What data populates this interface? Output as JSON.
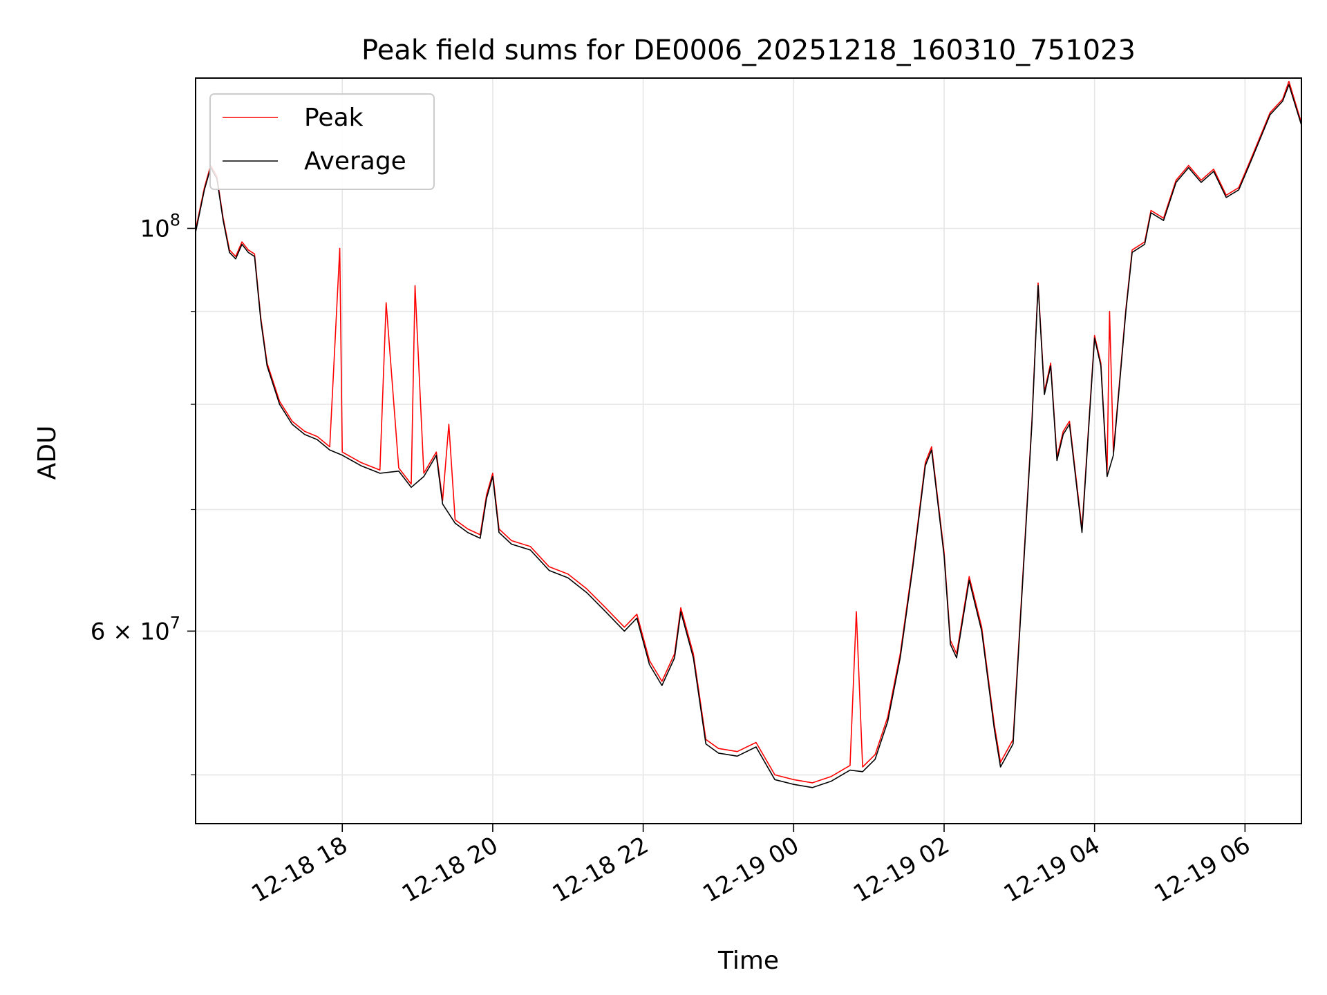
{
  "chart_data": {
    "type": "line",
    "title": "Peak field sums for DE0006_20251218_160310_751023",
    "xlabel": "Time",
    "ylabel": "ADU",
    "yscale": "log",
    "xlim": [
      "2025-12-18 16:03",
      "2025-12-19 06:45"
    ],
    "ylim": [
      47000000,
      121000000
    ],
    "grid": true,
    "legend_position": "top-left",
    "x_ticks": [
      {
        "t": "2025-12-18 18:00",
        "label": "12-18 18"
      },
      {
        "t": "2025-12-18 20:00",
        "label": "12-18 20"
      },
      {
        "t": "2025-12-18 22:00",
        "label": "12-18 22"
      },
      {
        "t": "2025-12-19 00:00",
        "label": "12-19 00"
      },
      {
        "t": "2025-12-19 02:00",
        "label": "12-19 02"
      },
      {
        "t": "2025-12-19 04:00",
        "label": "12-19 04"
      },
      {
        "t": "2025-12-19 06:00",
        "label": "12-19 06"
      }
    ],
    "y_major_ticks": [
      {
        "value": 100000000,
        "base": "10",
        "exp": "8"
      },
      {
        "value": 60000000,
        "base": "6 × 10",
        "exp": "7"
      }
    ],
    "y_minor_ticks": [
      50000000,
      70000000,
      80000000,
      90000000
    ],
    "series": [
      {
        "name": "Average",
        "color": "#000000",
        "points": [
          [
            "2025-12-18 16:03",
            99500000
          ],
          [
            "2025-12-18 16:10",
            105000000
          ],
          [
            "2025-12-18 16:15",
            108000000
          ],
          [
            "2025-12-18 16:20",
            106500000
          ],
          [
            "2025-12-18 16:25",
            101000000
          ],
          [
            "2025-12-18 16:30",
            97000000
          ],
          [
            "2025-12-18 16:35",
            96200000
          ],
          [
            "2025-12-18 16:40",
            98000000
          ],
          [
            "2025-12-18 16:45",
            97000000
          ],
          [
            "2025-12-18 16:50",
            96500000
          ],
          [
            "2025-12-18 16:55",
            89000000
          ],
          [
            "2025-12-18 17:00",
            84000000
          ],
          [
            "2025-12-18 17:10",
            80000000
          ],
          [
            "2025-12-18 17:20",
            78000000
          ],
          [
            "2025-12-18 17:30",
            77000000
          ],
          [
            "2025-12-18 17:40",
            76500000
          ],
          [
            "2025-12-18 17:50",
            75500000
          ],
          [
            "2025-12-18 18:00",
            75000000
          ],
          [
            "2025-12-18 18:15",
            74000000
          ],
          [
            "2025-12-18 18:30",
            73300000
          ],
          [
            "2025-12-18 18:45",
            73500000
          ],
          [
            "2025-12-18 18:55",
            72000000
          ],
          [
            "2025-12-18 19:05",
            73000000
          ],
          [
            "2025-12-18 19:15",
            75000000
          ],
          [
            "2025-12-18 19:20",
            70500000
          ],
          [
            "2025-12-18 19:30",
            68800000
          ],
          [
            "2025-12-18 19:40",
            68000000
          ],
          [
            "2025-12-18 19:50",
            67500000
          ],
          [
            "2025-12-18 19:55",
            71000000
          ],
          [
            "2025-12-18 20:00",
            73000000
          ],
          [
            "2025-12-18 20:05",
            68000000
          ],
          [
            "2025-12-18 20:15",
            67000000
          ],
          [
            "2025-12-18 20:30",
            66500000
          ],
          [
            "2025-12-18 20:45",
            64800000
          ],
          [
            "2025-12-18 21:00",
            64200000
          ],
          [
            "2025-12-18 21:15",
            63000000
          ],
          [
            "2025-12-18 21:30",
            61500000
          ],
          [
            "2025-12-18 21:45",
            60000000
          ],
          [
            "2025-12-18 21:55",
            61000000
          ],
          [
            "2025-12-18 22:05",
            57500000
          ],
          [
            "2025-12-18 22:15",
            56000000
          ],
          [
            "2025-12-18 22:25",
            58000000
          ],
          [
            "2025-12-18 22:30",
            61500000
          ],
          [
            "2025-12-18 22:40",
            58000000
          ],
          [
            "2025-12-18 22:50",
            52000000
          ],
          [
            "2025-12-18 23:00",
            51400000
          ],
          [
            "2025-12-18 23:15",
            51200000
          ],
          [
            "2025-12-18 23:30",
            51800000
          ],
          [
            "2025-12-18 23:45",
            49700000
          ],
          [
            "2025-12-19 00:00",
            49400000
          ],
          [
            "2025-12-19 00:15",
            49200000
          ],
          [
            "2025-12-19 00:30",
            49600000
          ],
          [
            "2025-12-19 00:45",
            50300000
          ],
          [
            "2025-12-19 00:55",
            50200000
          ],
          [
            "2025-12-19 01:05",
            51000000
          ],
          [
            "2025-12-19 01:15",
            53500000
          ],
          [
            "2025-12-19 01:25",
            58000000
          ],
          [
            "2025-12-19 01:35",
            65000000
          ],
          [
            "2025-12-19 01:45",
            74000000
          ],
          [
            "2025-12-19 01:50",
            75500000
          ],
          [
            "2025-12-19 02:00",
            66000000
          ],
          [
            "2025-12-19 02:05",
            59000000
          ],
          [
            "2025-12-19 02:10",
            58000000
          ],
          [
            "2025-12-19 02:20",
            64000000
          ],
          [
            "2025-12-19 02:30",
            60000000
          ],
          [
            "2025-12-19 02:40",
            53000000
          ],
          [
            "2025-12-19 02:45",
            50500000
          ],
          [
            "2025-12-19 02:55",
            52000000
          ],
          [
            "2025-12-19 03:05",
            68000000
          ],
          [
            "2025-12-19 03:10",
            78000000
          ],
          [
            "2025-12-19 03:15",
            93000000
          ],
          [
            "2025-12-19 03:20",
            81000000
          ],
          [
            "2025-12-19 03:25",
            84000000
          ],
          [
            "2025-12-19 03:30",
            74500000
          ],
          [
            "2025-12-19 03:35",
            77000000
          ],
          [
            "2025-12-19 03:40",
            78000000
          ],
          [
            "2025-12-19 03:50",
            68000000
          ],
          [
            "2025-12-19 03:55",
            77000000
          ],
          [
            "2025-12-19 04:00",
            87000000
          ],
          [
            "2025-12-19 04:05",
            84000000
          ],
          [
            "2025-12-19 04:10",
            73000000
          ],
          [
            "2025-12-19 04:15",
            75000000
          ],
          [
            "2025-12-19 04:25",
            90000000
          ],
          [
            "2025-12-19 04:30",
            97000000
          ],
          [
            "2025-12-19 04:40",
            98000000
          ],
          [
            "2025-12-19 04:45",
            102000000
          ],
          [
            "2025-12-19 04:55",
            101000000
          ],
          [
            "2025-12-19 05:05",
            106000000
          ],
          [
            "2025-12-19 05:15",
            108000000
          ],
          [
            "2025-12-19 05:25",
            106000000
          ],
          [
            "2025-12-19 05:35",
            107500000
          ],
          [
            "2025-12-19 05:45",
            104000000
          ],
          [
            "2025-12-19 05:55",
            105000000
          ],
          [
            "2025-12-19 06:05",
            109000000
          ],
          [
            "2025-12-19 06:20",
            115500000
          ],
          [
            "2025-12-19 06:30",
            117500000
          ],
          [
            "2025-12-19 06:35",
            120000000
          ],
          [
            "2025-12-19 06:45",
            114000000
          ]
        ]
      },
      {
        "name": "Peak",
        "color": "#ff0000",
        "points": [
          [
            "2025-12-18 16:03",
            99800000
          ],
          [
            "2025-12-18 16:10",
            105300000
          ],
          [
            "2025-12-18 16:15",
            108300000
          ],
          [
            "2025-12-18 16:20",
            106800000
          ],
          [
            "2025-12-18 16:25",
            101300000
          ],
          [
            "2025-12-18 16:30",
            97300000
          ],
          [
            "2025-12-18 16:35",
            96500000
          ],
          [
            "2025-12-18 16:40",
            98300000
          ],
          [
            "2025-12-18 16:45",
            97300000
          ],
          [
            "2025-12-18 16:50",
            96800000
          ],
          [
            "2025-12-18 16:55",
            89300000
          ],
          [
            "2025-12-18 17:00",
            84300000
          ],
          [
            "2025-12-18 17:10",
            80300000
          ],
          [
            "2025-12-18 17:20",
            78300000
          ],
          [
            "2025-12-18 17:30",
            77300000
          ],
          [
            "2025-12-18 17:40",
            76800000
          ],
          [
            "2025-12-18 17:50",
            75800000
          ],
          [
            "2025-12-18 17:58",
            97500000
          ],
          [
            "2025-12-18 18:00",
            75300000
          ],
          [
            "2025-12-18 18:15",
            74300000
          ],
          [
            "2025-12-18 18:30",
            73600000
          ],
          [
            "2025-12-18 18:35",
            91000000
          ],
          [
            "2025-12-18 18:45",
            73800000
          ],
          [
            "2025-12-18 18:55",
            72300000
          ],
          [
            "2025-12-18 18:58",
            93000000
          ],
          [
            "2025-12-18 19:05",
            73300000
          ],
          [
            "2025-12-18 19:15",
            75300000
          ],
          [
            "2025-12-18 19:20",
            70800000
          ],
          [
            "2025-12-18 19:25",
            78000000
          ],
          [
            "2025-12-18 19:30",
            69100000
          ],
          [
            "2025-12-18 19:40",
            68300000
          ],
          [
            "2025-12-18 19:50",
            67800000
          ],
          [
            "2025-12-18 19:55",
            71300000
          ],
          [
            "2025-12-18 20:00",
            73300000
          ],
          [
            "2025-12-18 20:05",
            68300000
          ],
          [
            "2025-12-18 20:15",
            67300000
          ],
          [
            "2025-12-18 20:30",
            66800000
          ],
          [
            "2025-12-18 20:45",
            65100000
          ],
          [
            "2025-12-18 21:00",
            64500000
          ],
          [
            "2025-12-18 21:15",
            63300000
          ],
          [
            "2025-12-18 21:30",
            61800000
          ],
          [
            "2025-12-18 21:45",
            60300000
          ],
          [
            "2025-12-18 21:55",
            61300000
          ],
          [
            "2025-12-18 22:05",
            57800000
          ],
          [
            "2025-12-18 22:15",
            56300000
          ],
          [
            "2025-12-18 22:25",
            58300000
          ],
          [
            "2025-12-18 22:30",
            61800000
          ],
          [
            "2025-12-18 22:40",
            58300000
          ],
          [
            "2025-12-18 22:50",
            52300000
          ],
          [
            "2025-12-18 23:00",
            51700000
          ],
          [
            "2025-12-18 23:15",
            51500000
          ],
          [
            "2025-12-18 23:30",
            52100000
          ],
          [
            "2025-12-18 23:45",
            50000000
          ],
          [
            "2025-12-19 00:00",
            49700000
          ],
          [
            "2025-12-19 00:15",
            49500000
          ],
          [
            "2025-12-19 00:30",
            49900000
          ],
          [
            "2025-12-19 00:45",
            50600000
          ],
          [
            "2025-12-19 00:50",
            61500000
          ],
          [
            "2025-12-19 00:55",
            50500000
          ],
          [
            "2025-12-19 01:05",
            51300000
          ],
          [
            "2025-12-19 01:15",
            53800000
          ],
          [
            "2025-12-19 01:25",
            58300000
          ],
          [
            "2025-12-19 01:35",
            65300000
          ],
          [
            "2025-12-19 01:45",
            74300000
          ],
          [
            "2025-12-19 01:50",
            75800000
          ],
          [
            "2025-12-19 02:00",
            66300000
          ],
          [
            "2025-12-19 02:05",
            59300000
          ],
          [
            "2025-12-19 02:10",
            58300000
          ],
          [
            "2025-12-19 02:20",
            64300000
          ],
          [
            "2025-12-19 02:30",
            60300000
          ],
          [
            "2025-12-19 02:40",
            53300000
          ],
          [
            "2025-12-19 02:45",
            50800000
          ],
          [
            "2025-12-19 02:55",
            52300000
          ],
          [
            "2025-12-19 03:05",
            68300000
          ],
          [
            "2025-12-19 03:10",
            78300000
          ],
          [
            "2025-12-19 03:15",
            93300000
          ],
          [
            "2025-12-19 03:20",
            81300000
          ],
          [
            "2025-12-19 03:25",
            84300000
          ],
          [
            "2025-12-19 03:30",
            74800000
          ],
          [
            "2025-12-19 03:35",
            77300000
          ],
          [
            "2025-12-19 03:40",
            78300000
          ],
          [
            "2025-12-19 03:50",
            68300000
          ],
          [
            "2025-12-19 03:55",
            77300000
          ],
          [
            "2025-12-19 04:00",
            87300000
          ],
          [
            "2025-12-19 04:05",
            84300000
          ],
          [
            "2025-12-19 04:10",
            73300000
          ],
          [
            "2025-12-19 04:12",
            90000000
          ],
          [
            "2025-12-19 04:15",
            75300000
          ],
          [
            "2025-12-19 04:25",
            90300000
          ],
          [
            "2025-12-19 04:30",
            97300000
          ],
          [
            "2025-12-19 04:40",
            98300000
          ],
          [
            "2025-12-19 04:45",
            102300000
          ],
          [
            "2025-12-19 04:55",
            101300000
          ],
          [
            "2025-12-19 05:05",
            106300000
          ],
          [
            "2025-12-19 05:15",
            108300000
          ],
          [
            "2025-12-19 05:25",
            106300000
          ],
          [
            "2025-12-19 05:35",
            107800000
          ],
          [
            "2025-12-19 05:45",
            104300000
          ],
          [
            "2025-12-19 05:55",
            105300000
          ],
          [
            "2025-12-19 06:05",
            109300000
          ],
          [
            "2025-12-19 06:20",
            115800000
          ],
          [
            "2025-12-19 06:30",
            117800000
          ],
          [
            "2025-12-19 06:35",
            120500000
          ],
          [
            "2025-12-19 06:45",
            114300000
          ]
        ]
      }
    ]
  }
}
